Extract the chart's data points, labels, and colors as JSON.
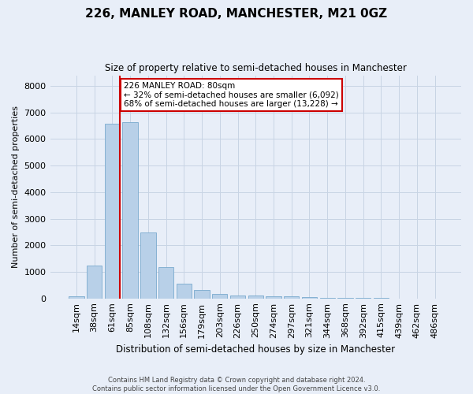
{
  "title_line1": "226, MANLEY ROAD, MANCHESTER, M21 0GZ",
  "title_line2": "Size of property relative to semi-detached houses in Manchester",
  "xlabel": "Distribution of semi-detached houses by size in Manchester",
  "ylabel": "Number of semi-detached properties",
  "footer_line1": "Contains HM Land Registry data © Crown copyright and database right 2024.",
  "footer_line2": "Contains public sector information licensed under the Open Government Licence v3.0.",
  "categories": [
    "14sqm",
    "38sqm",
    "61sqm",
    "85sqm",
    "108sqm",
    "132sqm",
    "156sqm",
    "179sqm",
    "203sqm",
    "226sqm",
    "250sqm",
    "274sqm",
    "297sqm",
    "321sqm",
    "344sqm",
    "368sqm",
    "392sqm",
    "415sqm",
    "439sqm",
    "462sqm",
    "486sqm"
  ],
  "values": [
    80,
    1230,
    6580,
    6650,
    2480,
    1180,
    560,
    320,
    165,
    120,
    110,
    85,
    70,
    40,
    20,
    15,
    10,
    8,
    5,
    3,
    2
  ],
  "bar_color": "#b8d0e8",
  "bar_edge_color": "#7aaace",
  "highlight_line_color": "#cc0000",
  "annotation_text": "226 MANLEY ROAD: 80sqm\n← 32% of semi-detached houses are smaller (6,092)\n68% of semi-detached houses are larger (13,228) →",
  "annotation_box_color": "#ffffff",
  "annotation_box_edge": "#cc0000",
  "ylim": [
    0,
    8400
  ],
  "yticks": [
    0,
    1000,
    2000,
    3000,
    4000,
    5000,
    6000,
    7000,
    8000
  ],
  "grid_color": "#c8d4e4",
  "background_color": "#e8eef8"
}
